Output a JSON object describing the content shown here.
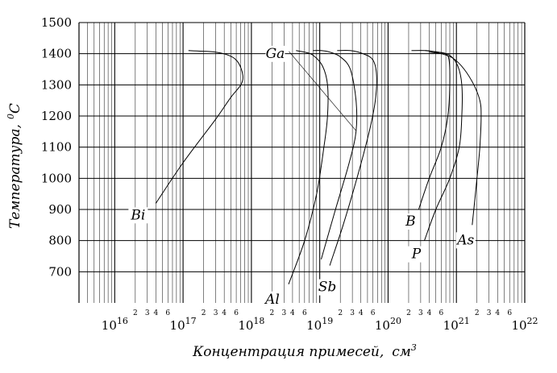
{
  "chart_data": {
    "type": "line",
    "xlabel": "Концентрация примесей,",
    "xlabel_unit_base": "см",
    "xlabel_unit_exp": "3",
    "ylabel": "Температура,",
    "ylabel_unit_sup": "0",
    "ylabel_unit": "C",
    "xscale": "log",
    "xlim": [
      3000000000000000.0,
      1e+22
    ],
    "ylim": [
      600,
      1500
    ],
    "grid": true,
    "yticks": [
      "700",
      "800",
      "900",
      "1000",
      "1100",
      "1200",
      "1300",
      "1400",
      "1500"
    ],
    "ytick_values": [
      700,
      800,
      900,
      1000,
      1100,
      1200,
      1300,
      1400,
      1500
    ],
    "xticks": [
      {
        "value": 1e+16,
        "base": "10",
        "exp": "16"
      },
      {
        "value": 1e+17,
        "base": "10",
        "exp": "17"
      },
      {
        "value": 1e+18,
        "base": "10",
        "exp": "18"
      },
      {
        "value": 1e+19,
        "base": "10",
        "exp": "19"
      },
      {
        "value": 1e+20,
        "base": "10",
        "exp": "20"
      },
      {
        "value": 1e+21,
        "base": "10",
        "exp": "21"
      },
      {
        "value": 1e+22,
        "base": "10",
        "exp": "22"
      }
    ],
    "minor_tick_labels": [
      "2",
      "3",
      "4",
      "6"
    ],
    "minor_tick_multipliers": [
      2,
      3,
      4,
      6
    ],
    "series": [
      {
        "name": "Bi",
        "x": [
          4e+16,
          1e+17,
          3e+17,
          5e+17,
          7e+17,
          7.5e+17,
          6.5e+17,
          5e+17,
          3e+17,
          1.2e+17
        ],
        "y": [
          920,
          1050,
          1190,
          1260,
          1300,
          1330,
          1370,
          1392,
          1405,
          1410
        ]
      },
      {
        "name": "Al",
        "x": [
          3.5e+18,
          6e+18,
          9e+18,
          1.15e+19,
          1.3e+19,
          1.3e+19,
          1.1e+19,
          8e+18,
          6e+18,
          4.5e+18
        ],
        "y": [
          660,
          800,
          950,
          1100,
          1200,
          1300,
          1360,
          1395,
          1405,
          1410
        ]
      },
      {
        "name": "Ga",
        "x": [
          1.05e+19,
          1.7e+19,
          2.7e+19,
          3.4e+19,
          3.4e+19,
          2.8e+19,
          2e+19,
          1.4e+19,
          1.05e+19,
          8e+18
        ],
        "y": [
          740,
          900,
          1050,
          1150,
          1250,
          1350,
          1390,
          1405,
          1410,
          1410
        ]
      },
      {
        "name": "Sb",
        "x": [
          1.4e+19,
          2.2e+19,
          3.5e+19,
          5.3e+19,
          6.5e+19,
          6.8e+19,
          6e+19,
          4.3e+19,
          2.8e+19,
          1.8e+19
        ],
        "y": [
          720,
          850,
          1000,
          1150,
          1250,
          1330,
          1380,
          1400,
          1410,
          1410
        ]
      },
      {
        "name": "B",
        "x": [
          2.8e+20,
          4e+20,
          6e+20,
          7.5e+20,
          8e+20,
          7.8e+20,
          6.8e+20,
          5e+20,
          3.6e+20,
          2.2e+20
        ],
        "y": [
          900,
          1000,
          1100,
          1200,
          1300,
          1380,
          1400,
          1405,
          1410,
          1410
        ]
      },
      {
        "name": "P",
        "x": [
          3.4e+20,
          5e+20,
          8e+20,
          1.1e+21,
          1.2e+21,
          1.2e+21,
          1.05e+21,
          8e+20,
          5.5e+20,
          3.5e+20
        ],
        "y": [
          800,
          900,
          1000,
          1100,
          1200,
          1300,
          1360,
          1395,
          1405,
          1410
        ]
      },
      {
        "name": "As",
        "x": [
          1.7e+21,
          2e+21,
          2.2e+21,
          2.3e+21,
          2.2e+21,
          1.8e+21,
          1.3e+21,
          9e+20,
          6e+20,
          4e+20
        ],
        "y": [
          850,
          1000,
          1100,
          1200,
          1250,
          1300,
          1350,
          1385,
          1400,
          1405
        ]
      }
    ],
    "annotations": [
      {
        "text": "Bi",
        "series": "Bi"
      },
      {
        "text": "Al",
        "series": "Al"
      },
      {
        "text": "Ga",
        "series": "Ga"
      },
      {
        "text": "Sb",
        "series": "Sb"
      },
      {
        "text": "B",
        "series": "B"
      },
      {
        "text": "P",
        "series": "P"
      },
      {
        "text": "As",
        "series": "As"
      }
    ]
  }
}
